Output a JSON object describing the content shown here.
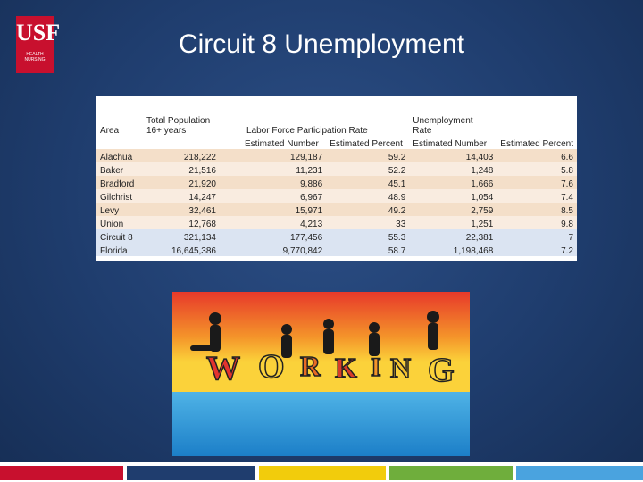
{
  "logo": {
    "mark": "USF",
    "subtitle": "HEALTH NURSING"
  },
  "title": "Circuit 8 Unemployment",
  "table": {
    "header_row1": [
      "Area",
      "Total Population 16+ years",
      "Labor Force Participation Rate",
      "Unemployment Rate",
      ""
    ],
    "header_row2": [
      "",
      "",
      "Estimated Number",
      "Estimated Percent",
      "Estimated Number",
      "Estimated Percent"
    ],
    "rows": [
      [
        "Alachua",
        "218,222",
        "129,187",
        "59.2",
        "14,403",
        "6.6"
      ],
      [
        "Baker",
        "21,516",
        "11,231",
        "52.2",
        "1,248",
        "5.8"
      ],
      [
        "Bradford",
        "21,920",
        "9,886",
        "45.1",
        "1,666",
        "7.6"
      ],
      [
        "Gilchrist",
        "14,247",
        "6,967",
        "48.9",
        "1,054",
        "7.4"
      ],
      [
        "Levy",
        "32,461",
        "15,971",
        "49.2",
        "2,759",
        "8.5"
      ],
      [
        "Union",
        "12,768",
        "4,213",
        "33",
        "1,251",
        "9.8"
      ],
      [
        "Circuit 8",
        "321,134",
        "177,456",
        "55.3",
        "22,381",
        "7"
      ],
      [
        "Florida",
        "16,645,386",
        "9,770,842",
        "58.7",
        "1,198,468",
        "7.2"
      ]
    ]
  },
  "image": {
    "word": "WORKING"
  },
  "colors": {
    "brand_red": "#c8102e",
    "footer_blue": "#1f3d6e",
    "footer_gray": "#a6a6a6",
    "footer_yellow": "#f2cc0c",
    "footer_green": "#6fae3c",
    "footer_light_blue": "#4aa3df"
  }
}
